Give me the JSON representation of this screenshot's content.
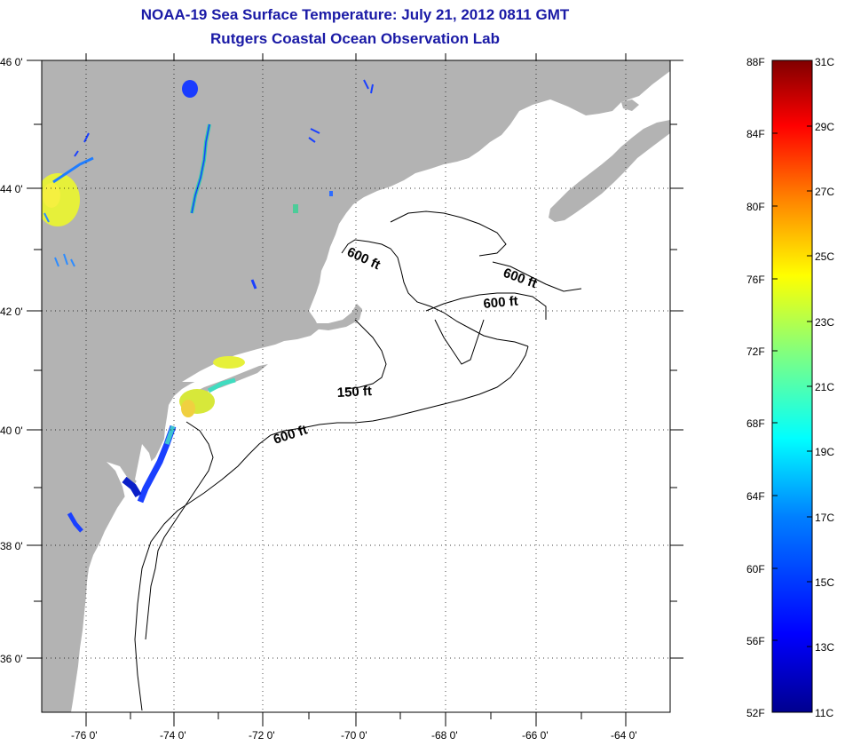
{
  "title": {
    "line1": "NOAA-19 Sea Surface Temperature:  July 21, 2012 0811 GMT",
    "line2": "Rutgers Coastal Ocean Observation Lab"
  },
  "map": {
    "land_color": "#b3b3b3",
    "ocean_color": "#ffffff",
    "lat_range": [
      35,
      46
    ],
    "lon_range": [
      -77,
      -63
    ],
    "lat_labels": [
      "46 0'",
      "44 0'",
      "42 0'",
      "40 0'",
      "38 0'",
      "36 0'"
    ],
    "lon_labels": [
      "-76 0'",
      "-74 0'",
      "-72 0'",
      "-70 0'",
      "-68 0'",
      "-66 0'",
      "-64 0'"
    ],
    "contour_labels": [
      "600 ft",
      "600 ft",
      "600 ft",
      "150 ft",
      "600 ft"
    ]
  },
  "colorbar": {
    "fahrenheit_labels": [
      "88F",
      "84F",
      "80F",
      "76F",
      "72F",
      "68F",
      "64F",
      "60F",
      "56F",
      "52F"
    ],
    "celsius_labels": [
      "31C",
      "29C",
      "27C",
      "25C",
      "23C",
      "21C",
      "19C",
      "17C",
      "15C",
      "13C",
      "11C"
    ],
    "colors": [
      "#00008f",
      "#0000ff",
      "#0080ff",
      "#00ffff",
      "#80ff80",
      "#ffff00",
      "#ff8000",
      "#ff0000",
      "#800000"
    ]
  }
}
